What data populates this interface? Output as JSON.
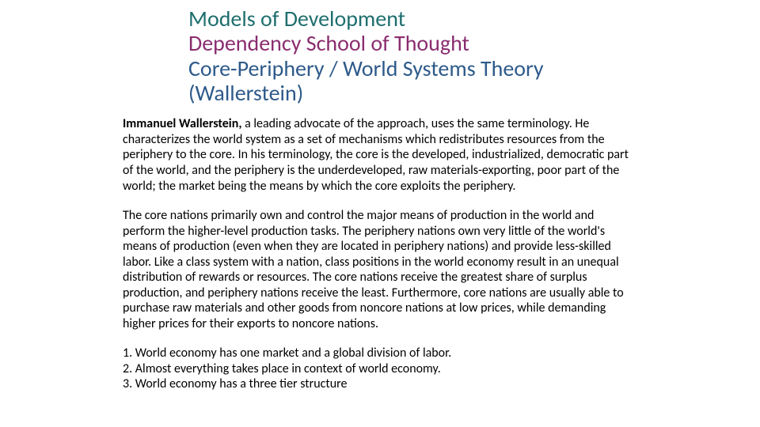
{
  "title": {
    "line1": "Models of Development",
    "line2": "Dependency School of Thought",
    "line3": "Core-Periphery / World Systems Theory",
    "line4": "(Wallerstein)",
    "colors": {
      "line1": "#1f6e6e",
      "line2": "#8a2d6f",
      "line3": "#2e5a8a",
      "line4": "#2e5a8a"
    },
    "fontsize": 28
  },
  "body": {
    "fontsize": 16,
    "color": "#000000",
    "para1_lead": "Immanuel Wallerstein,",
    "para1_rest": " a leading advocate of the approach, uses the same terminology. He characterizes the world system as a set of mechanisms which redistributes resources from the periphery to the core. In his terminology, the core is the developed, industrialized, democratic part of the world, and the periphery is the underdeveloped, raw materials-exporting, poor part of the world; the market being the means by which the core exploits the periphery.",
    "para2": "The core nations primarily own and control the major means of production in the world and perform the higher-level production tasks. The periphery nations own very little of the world's means of production (even when they are located in periphery nations) and provide less-skilled labor. Like a class system with a nation, class positions in the world economy result in an unequal distribution of rewards or resources. The core nations receive the greatest share of surplus production, and periphery nations receive the least. Furthermore, core nations are usually able to purchase raw materials and other goods from noncore nations at low prices, while demanding higher prices for their exports to noncore nations.",
    "list": {
      "item1": "1. World economy has one market and a global division of labor.",
      "item2": "2. Almost everything takes place in context of world economy.",
      "item3": "3. World economy has a three tier structure"
    }
  },
  "background_color": "#ffffff"
}
